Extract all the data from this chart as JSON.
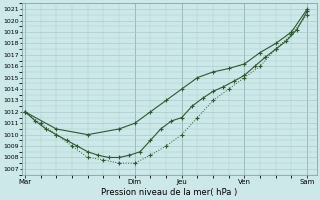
{
  "title": "Pression niveau de la mer( hPa )",
  "bg_color": "#cce8e8",
  "grid_color": "#aacccc",
  "line_color": "#2d5a2d",
  "ylim": [
    1006.5,
    1021.5
  ],
  "ytick_labels": [
    "1007",
    "1008",
    "1009",
    "1010",
    "1011",
    "1012",
    "1013",
    "1014",
    "1015",
    "1016",
    "1017",
    "1018",
    "1019",
    "1020",
    "1021"
  ],
  "ytick_vals": [
    1007,
    1008,
    1009,
    1010,
    1011,
    1012,
    1013,
    1014,
    1015,
    1016,
    1017,
    1018,
    1019,
    1020,
    1021
  ],
  "day_labels": [
    "Mar",
    "Dim",
    "Jeu",
    "Ven",
    "Sam"
  ],
  "day_positions": [
    0,
    3.5,
    5.0,
    7.0,
    9.0
  ],
  "xlim": [
    -0.1,
    9.3
  ],
  "line1_x": [
    0,
    0.33,
    0.67,
    1.0,
    1.33,
    1.67,
    2.0,
    2.33,
    2.67,
    3.0,
    3.33,
    3.67,
    4.0,
    4.33,
    4.67,
    5.0,
    5.33,
    5.67,
    6.0,
    6.33,
    6.67,
    7.0,
    7.33,
    7.67,
    8.0,
    8.33,
    8.67,
    9.0
  ],
  "line1_y": [
    1012.0,
    1011.2,
    1010.5,
    1010.0,
    1009.5,
    1009.0,
    1008.5,
    1008.2,
    1008.0,
    1008.0,
    1008.2,
    1008.5,
    1009.5,
    1010.5,
    1011.2,
    1011.5,
    1012.5,
    1013.2,
    1013.8,
    1014.2,
    1014.7,
    1015.2,
    1016.0,
    1016.8,
    1017.5,
    1018.2,
    1019.2,
    1020.8
  ],
  "line2_x": [
    0,
    0.5,
    1.0,
    1.5,
    2.0,
    2.5,
    3.0,
    3.5,
    4.0,
    4.5,
    5.0,
    5.5,
    6.0,
    6.5,
    7.0,
    7.5,
    8.0,
    8.5,
    9.0
  ],
  "line2_y": [
    1012.0,
    1011.0,
    1010.0,
    1009.0,
    1008.0,
    1007.8,
    1007.5,
    1007.5,
    1008.2,
    1009.0,
    1010.0,
    1011.5,
    1013.0,
    1014.0,
    1015.0,
    1016.0,
    1017.5,
    1018.8,
    1020.5
  ],
  "line3_x": [
    0,
    1.0,
    2.0,
    3.0,
    3.5,
    4.0,
    4.5,
    5.0,
    5.5,
    6.0,
    6.5,
    7.0,
    7.5,
    8.0,
    8.5,
    9.0
  ],
  "line3_y": [
    1012.0,
    1010.5,
    1010.0,
    1010.5,
    1011.0,
    1012.0,
    1013.0,
    1014.0,
    1015.0,
    1015.5,
    1015.8,
    1016.2,
    1017.2,
    1018.0,
    1019.0,
    1021.0
  ],
  "figsize": [
    3.2,
    2.0
  ],
  "dpi": 100
}
